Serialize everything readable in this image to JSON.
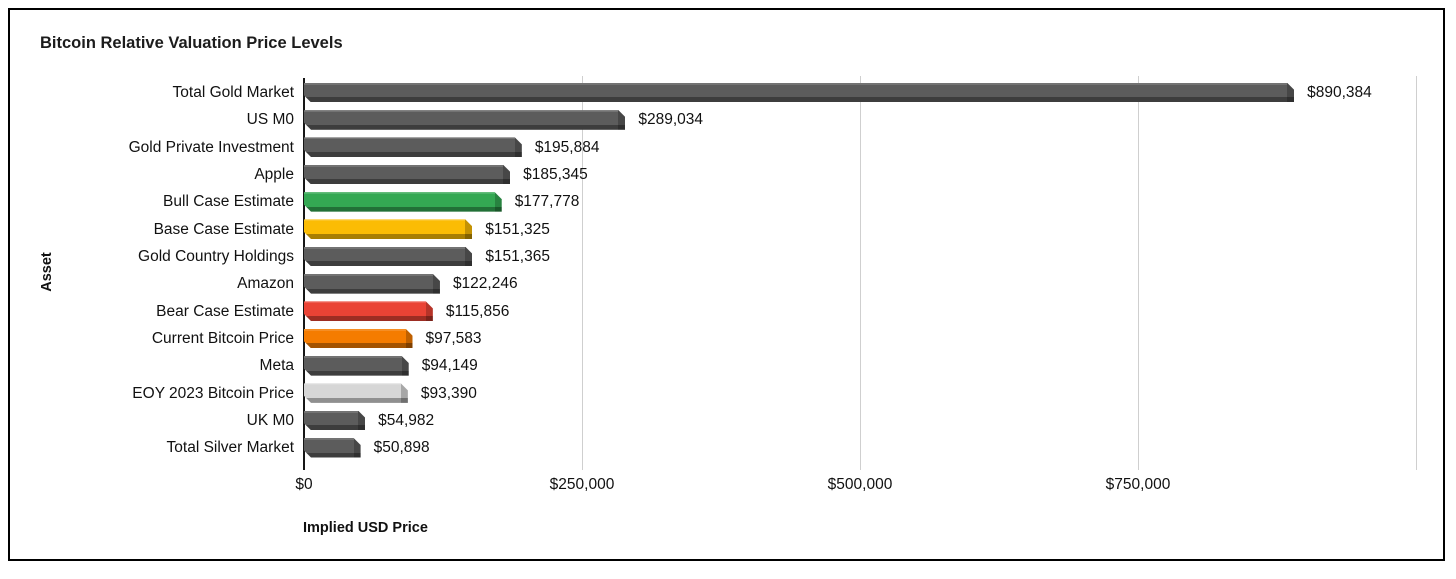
{
  "chart_data": {
    "type": "bar",
    "orientation": "horizontal",
    "title": "Bitcoin Relative Valuation Price Levels",
    "xlabel": "Implied USD Price",
    "ylabel": "Asset",
    "xlim": [
      0,
      1000000
    ],
    "grid": true,
    "legend": false,
    "x_ticks": [
      {
        "label": "$0",
        "value": 0
      },
      {
        "label": "$250,000",
        "value": 250000
      },
      {
        "label": "$500,000",
        "value": 500000
      },
      {
        "label": "$750,000",
        "value": 750000
      }
    ],
    "right_boundary_gridline_value": 1000000,
    "categories": [
      "Total Gold Market",
      "US M0",
      "Gold Private Investment",
      "Apple",
      "Bull Case Estimate",
      "Base Case Estimate",
      "Gold Country Holdings",
      "Amazon",
      "Bear Case Estimate",
      "Current Bitcoin Price",
      "Meta",
      "EOY 2023 Bitcoin Price",
      "UK M0",
      "Total Silver Market"
    ],
    "values": [
      890384,
      289034,
      195884,
      185345,
      177778,
      151325,
      151365,
      122246,
      115856,
      97583,
      94149,
      93390,
      54982,
      50898
    ],
    "value_labels": [
      "$890,384",
      "$289,034",
      "$195,884",
      "$185,345",
      "$177,778",
      "$151,325",
      "$151,365",
      "$122,246",
      "$115,856",
      "$97,583",
      "$94,149",
      "$93,390",
      "$54,982",
      "$50,898"
    ],
    "bar_colors": [
      "#5c5c5c",
      "#5c5c5c",
      "#5c5c5c",
      "#5c5c5c",
      "#34a853",
      "#fbbc04",
      "#5c5c5c",
      "#5c5c5c",
      "#ea4335",
      "#f57c00",
      "#5c5c5c",
      "#d6d6d6",
      "#5c5c5c",
      "#5c5c5c"
    ],
    "colors": {
      "default_bar": "#5c5c5c",
      "bull_case": "#34a853",
      "base_case": "#fbbc04",
      "bear_case": "#ea4335",
      "current_price": "#f57c00",
      "eoy_2023": "#d6d6d6",
      "gridline": "#cfcfcf",
      "axis_line": "#161616",
      "text": "#111111"
    }
  }
}
